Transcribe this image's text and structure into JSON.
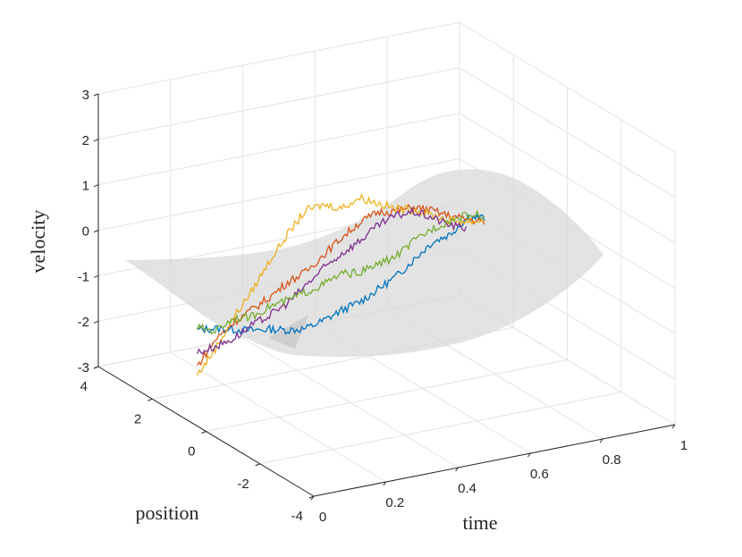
{
  "chart_data": {
    "type": "3d-line-surface",
    "xlabel": "time",
    "ylabel": "position",
    "zlabel": "velocity",
    "x_ticks": [
      "0",
      "0.2",
      "0.4",
      "0.6",
      "0.8",
      "1"
    ],
    "y_ticks": [
      "-4",
      "-2",
      "0",
      "2",
      "4"
    ],
    "z_ticks": [
      "-3",
      "-2",
      "-1",
      "0",
      "1",
      "2",
      "3"
    ],
    "xlim": [
      0,
      1
    ],
    "ylim": [
      -4,
      4
    ],
    "zlim": [
      -3,
      3
    ],
    "grid": true,
    "surface": {
      "description": "translucent light-gray velocity surface",
      "color": "#d9d9d9"
    },
    "series": [
      {
        "color": "#0072BD",
        "points": [
          [
            0.05,
            -1.2
          ],
          [
            0.1,
            -1.25
          ],
          [
            0.15,
            -1.35
          ],
          [
            0.2,
            -1.45
          ],
          [
            0.25,
            -1.5
          ],
          [
            0.3,
            -1.6
          ],
          [
            0.35,
            -1.65
          ],
          [
            0.4,
            -1.55
          ],
          [
            0.45,
            -1.4
          ],
          [
            0.5,
            -1.3
          ],
          [
            0.55,
            -1.1
          ],
          [
            0.6,
            -0.9
          ],
          [
            0.65,
            -0.6
          ],
          [
            0.7,
            -0.3
          ],
          [
            0.75,
            -0.2
          ],
          [
            0.8,
            0.1
          ],
          [
            0.85,
            0.0
          ]
        ]
      },
      {
        "color": "#D95319",
        "points": [
          [
            0.05,
            -2.0
          ],
          [
            0.1,
            -1.5
          ],
          [
            0.15,
            -1.2
          ],
          [
            0.2,
            -1.0
          ],
          [
            0.25,
            -0.8
          ],
          [
            0.3,
            -0.55
          ],
          [
            0.35,
            -0.4
          ],
          [
            0.4,
            -0.1
          ],
          [
            0.45,
            0.2
          ],
          [
            0.5,
            0.45
          ],
          [
            0.55,
            0.6
          ],
          [
            0.6,
            0.55
          ],
          [
            0.65,
            0.55
          ],
          [
            0.7,
            0.4
          ],
          [
            0.75,
            0.2
          ],
          [
            0.8,
            0.05
          ],
          [
            0.85,
            -0.1
          ]
        ]
      },
      {
        "color": "#EDB120",
        "points": [
          [
            0.05,
            -2.2
          ],
          [
            0.1,
            -1.7
          ],
          [
            0.15,
            -1.1
          ],
          [
            0.2,
            -0.6
          ],
          [
            0.25,
            0.0
          ],
          [
            0.3,
            0.5
          ],
          [
            0.35,
            0.95
          ],
          [
            0.4,
            1.0
          ],
          [
            0.45,
            0.85
          ],
          [
            0.5,
            1.0
          ],
          [
            0.55,
            0.8
          ],
          [
            0.6,
            0.6
          ],
          [
            0.65,
            0.5
          ],
          [
            0.7,
            0.3
          ],
          [
            0.75,
            0.1
          ],
          [
            0.8,
            0.0
          ],
          [
            0.85,
            -0.05
          ]
        ]
      },
      {
        "color": "#7E2F8E",
        "points": [
          [
            0.05,
            -1.7
          ],
          [
            0.1,
            -1.65
          ],
          [
            0.15,
            -1.55
          ],
          [
            0.2,
            -1.35
          ],
          [
            0.25,
            -1.2
          ],
          [
            0.3,
            -1.0
          ],
          [
            0.35,
            -0.7
          ],
          [
            0.4,
            -0.4
          ],
          [
            0.45,
            -0.15
          ],
          [
            0.5,
            0.05
          ],
          [
            0.55,
            0.3
          ],
          [
            0.6,
            0.45
          ],
          [
            0.65,
            0.45
          ],
          [
            0.7,
            0.25
          ],
          [
            0.75,
            0.0
          ],
          [
            0.8,
            -0.15
          ]
        ]
      },
      {
        "color": "#77AC30",
        "points": [
          [
            0.05,
            -1.15
          ],
          [
            0.1,
            -1.3
          ],
          [
            0.15,
            -1.1
          ],
          [
            0.2,
            -1.15
          ],
          [
            0.25,
            -1.0
          ],
          [
            0.3,
            -0.95
          ],
          [
            0.35,
            -0.85
          ],
          [
            0.4,
            -0.75
          ],
          [
            0.45,
            -0.6
          ],
          [
            0.5,
            -0.65
          ],
          [
            0.55,
            -0.55
          ],
          [
            0.6,
            -0.45
          ],
          [
            0.65,
            -0.2
          ],
          [
            0.7,
            0.0
          ],
          [
            0.75,
            0.1
          ],
          [
            0.8,
            0.15
          ],
          [
            0.85,
            0.05
          ]
        ]
      }
    ]
  }
}
